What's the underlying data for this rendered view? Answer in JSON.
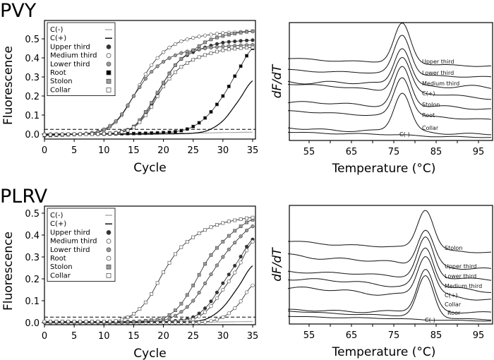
{
  "chart_data": [
    {
      "panel": "PVY",
      "type": "line",
      "xlabel": "Cycle",
      "ylabel": "Fluorescence",
      "xlim": [
        0,
        35
      ],
      "ylim": [
        -0.01,
        0.56
      ],
      "xticks": [
        "0",
        "5",
        "10",
        "15",
        "20",
        "25",
        "30",
        "35"
      ],
      "yticks": [
        "0.0",
        "0.1",
        "0.2",
        "0.3",
        "0.4",
        "0.5"
      ],
      "threshold": 0.025,
      "legend_position": "top-left",
      "x": [
        0,
        2.5,
        5,
        7.5,
        10,
        12.5,
        15,
        17.5,
        20,
        22.5,
        25,
        27.5,
        30,
        32.5,
        35
      ],
      "series": [
        {
          "name": "C(-)",
          "marker": "none",
          "line_color": "#aaaaaa",
          "values": [
            0.002,
            0.002,
            0.002,
            0.002,
            0.002,
            0.002,
            0.002,
            0.003,
            0.003,
            0.004,
            0.005,
            0.006,
            0.008,
            0.009,
            0.01
          ]
        },
        {
          "name": "C(+)",
          "marker": "none",
          "line_color": "#000000",
          "values": [
            0,
            0,
            0,
            0,
            0,
            0,
            0,
            0,
            0.001,
            0.002,
            0.005,
            0.02,
            0.07,
            0.17,
            0.28
          ]
        },
        {
          "name": "Upper third",
          "marker": "circle",
          "fill": "#333333",
          "values": [
            -0.004,
            -0.002,
            0,
            0,
            0.002,
            0.01,
            0.04,
            0.13,
            0.27,
            0.38,
            0.43,
            0.46,
            0.48,
            0.488,
            0.493
          ]
        },
        {
          "name": "Medium third",
          "marker": "circle",
          "fill": "#ffffff",
          "values": [
            0,
            0,
            0,
            0.005,
            0.02,
            0.08,
            0.2,
            0.34,
            0.43,
            0.48,
            0.505,
            0.52,
            0.53,
            0.535,
            0.54
          ]
        },
        {
          "name": "Lower third",
          "marker": "circle",
          "fill": "#999999",
          "values": [
            -0.005,
            -0.003,
            0,
            0.005,
            0.025,
            0.085,
            0.2,
            0.31,
            0.38,
            0.42,
            0.44,
            0.452,
            0.46,
            0.465,
            0.468
          ]
        },
        {
          "name": "Root",
          "marker": "square",
          "fill": "#000000",
          "values": [
            -0.008,
            -0.005,
            -0.002,
            0,
            0,
            0.002,
            0.003,
            0.005,
            0.008,
            0.015,
            0.04,
            0.1,
            0.2,
            0.33,
            0.45
          ]
        },
        {
          "name": "Stolon",
          "marker": "square",
          "fill": "#999999",
          "values": [
            -0.005,
            -0.003,
            0,
            0,
            0.003,
            0.01,
            0.04,
            0.14,
            0.27,
            0.38,
            0.44,
            0.49,
            0.515,
            0.53,
            0.54
          ]
        },
        {
          "name": "Collar",
          "marker": "square",
          "fill": "#ffffff",
          "values": [
            -0.004,
            -0.002,
            0,
            0,
            0.002,
            0.008,
            0.035,
            0.12,
            0.25,
            0.34,
            0.39,
            0.42,
            0.44,
            0.45,
            0.455
          ]
        }
      ]
    },
    {
      "panel": "PVY",
      "type": "line",
      "xlabel": "Temperature (°C)",
      "ylabel": "dF/dT",
      "xlim": [
        50,
        98
      ],
      "xticks": [
        "55",
        "65",
        "75",
        "85",
        "95"
      ],
      "peak_temperature": 77,
      "curve_labels": [
        "Upper third",
        "Lower third",
        "Medium third",
        "C(+)",
        "Stolon",
        "Root",
        "Collar",
        "C(-)"
      ]
    },
    {
      "panel": "PLRV",
      "type": "line",
      "xlabel": "Cycle",
      "ylabel": "Fluorescence",
      "xlim": [
        0,
        35
      ],
      "ylim": [
        -0.01,
        0.52
      ],
      "xticks": [
        "0",
        "5",
        "10",
        "15",
        "20",
        "25",
        "30",
        "35"
      ],
      "yticks": [
        "0.0",
        "0.1",
        "0.2",
        "0.3",
        "0.4",
        "0.5"
      ],
      "threshold": 0.025,
      "legend_position": "top-left",
      "x": [
        0,
        2.5,
        5,
        7.5,
        10,
        12.5,
        15,
        17.5,
        20,
        22.5,
        25,
        27.5,
        30,
        32.5,
        35
      ],
      "series": [
        {
          "name": "C(-)",
          "marker": "none",
          "line_color": "#aaaaaa",
          "values": [
            0,
            0,
            0,
            0,
            0,
            0,
            0,
            0,
            0,
            0,
            0.001,
            0.002,
            0.003,
            0.004,
            0.005
          ]
        },
        {
          "name": "C(+)",
          "marker": "none",
          "line_color": "#000000",
          "values": [
            0,
            0,
            0,
            0,
            0,
            0,
            0,
            0,
            0,
            0.002,
            0.005,
            0.02,
            0.07,
            0.16,
            0.26
          ]
        },
        {
          "name": "Upper third",
          "marker": "circle",
          "fill": "#333333",
          "values": [
            0.005,
            0.005,
            0.005,
            0.005,
            0.005,
            0.005,
            0.005,
            0.005,
            0.005,
            0.01,
            0.025,
            0.08,
            0.18,
            0.28,
            0.38
          ]
        },
        {
          "name": "Medium third",
          "marker": "circle",
          "fill": "#ffffff",
          "values": [
            0.003,
            0.003,
            0.003,
            0.003,
            0.003,
            0.003,
            0.003,
            0.003,
            0.003,
            0.005,
            0.015,
            0.06,
            0.15,
            0.25,
            0.37
          ]
        },
        {
          "name": "Lower third",
          "marker": "circle",
          "fill": "#999999",
          "values": [
            0.002,
            0.002,
            0.002,
            0.002,
            0.002,
            0.002,
            0.003,
            0.004,
            0.01,
            0.04,
            0.1,
            0.2,
            0.3,
            0.38,
            0.44
          ]
        },
        {
          "name": "Root",
          "marker": "circle",
          "fill": "#ffffff",
          "values": [
            0,
            0,
            0,
            0,
            0,
            0,
            0,
            0,
            0,
            0,
            0,
            0.005,
            0.025,
            0.08,
            0.17
          ]
        },
        {
          "name": "Stolon",
          "marker": "square",
          "fill": "#999999",
          "values": [
            0.003,
            0.003,
            0.003,
            0.003,
            0.003,
            0.003,
            0.004,
            0.01,
            0.02,
            0.07,
            0.17,
            0.29,
            0.37,
            0.43,
            0.47
          ]
        },
        {
          "name": "Collar",
          "marker": "square",
          "fill": "#ffffff",
          "values": [
            0.005,
            0.005,
            0.005,
            0.005,
            0.005,
            0.01,
            0.04,
            0.11,
            0.23,
            0.33,
            0.39,
            0.43,
            0.455,
            0.47,
            0.48
          ]
        }
      ]
    },
    {
      "panel": "PLRV",
      "type": "line",
      "xlabel": "Temperature (°C)",
      "ylabel": "dF/dT",
      "xlim": [
        50,
        98
      ],
      "xticks": [
        "55",
        "65",
        "75",
        "85",
        "95"
      ],
      "peak_temperature": 82.5,
      "curve_labels": [
        "Stolon",
        "Upper third",
        "Lower third",
        "Medium third",
        "C(+)",
        "Collar",
        "Roor",
        "C(-)"
      ]
    }
  ]
}
